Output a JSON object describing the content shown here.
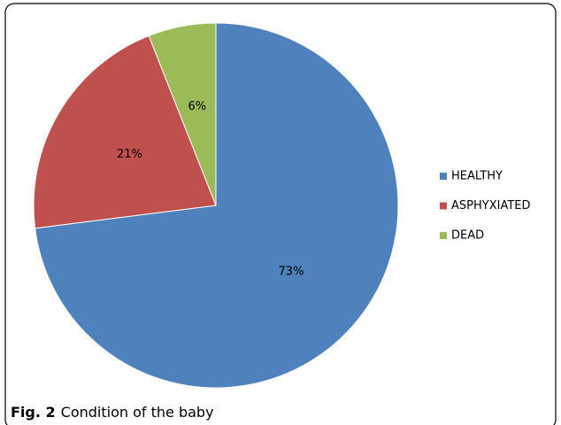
{
  "chart_data": {
    "type": "pie",
    "categories": [
      "HEALTHY",
      "ASPHYXIATED",
      "DEAD"
    ],
    "values": [
      73,
      21,
      6
    ],
    "value_labels": [
      "73%",
      "21%",
      "6%"
    ],
    "colors": [
      "#4f81bd",
      "#c0504d",
      "#9bbb59"
    ],
    "legend": "right"
  },
  "caption": {
    "label": "Fig. 2",
    "text": "Condition of the baby"
  }
}
